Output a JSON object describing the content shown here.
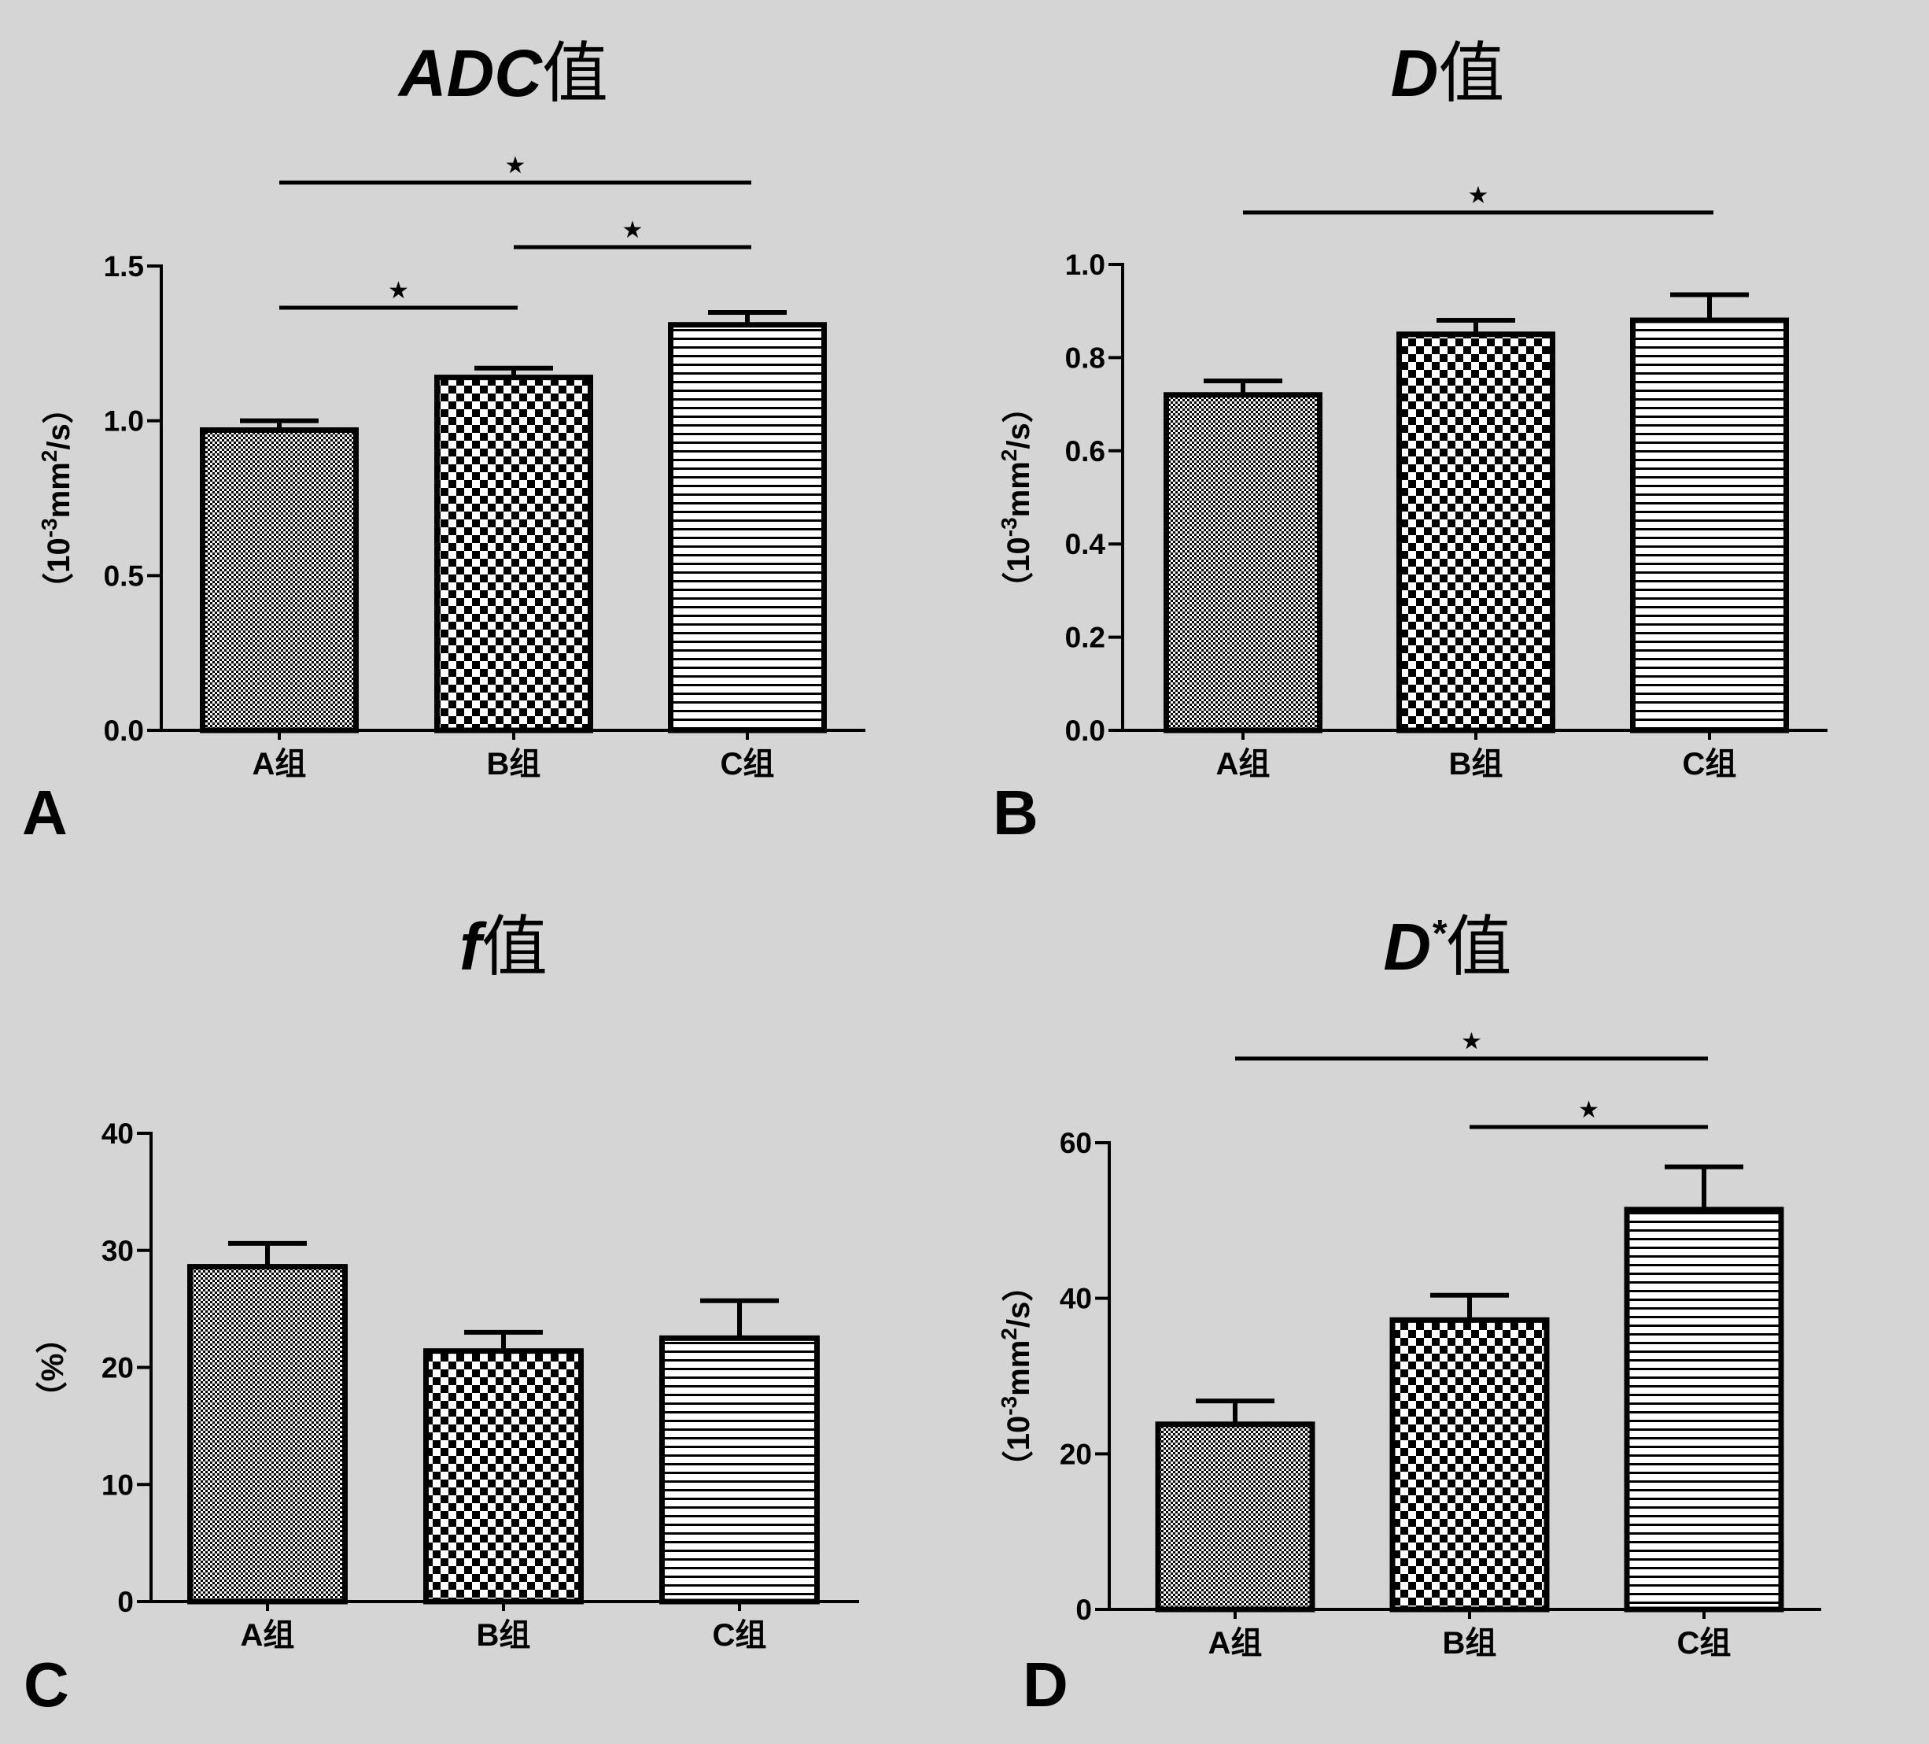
{
  "colors": {
    "background": "#d5d5d5",
    "ink": "#000000",
    "bar_fill": "#ffffff"
  },
  "patterns": [
    "fine-dots-pattern",
    "checker-pattern",
    "horizontal-lines-pattern"
  ],
  "chart_data": [
    {
      "type": "bar",
      "panel_label": "A",
      "title_italic": "ADC",
      "title_suffix": "值",
      "ylabel_prefix": "（10",
      "ylabel_exp": "-3",
      "ylabel_mid": "mm",
      "ylabel_exp2": "2",
      "ylabel_suffix": "/s）",
      "categories": [
        "A组",
        "B组",
        "C组"
      ],
      "values": [
        0.97,
        1.14,
        1.31
      ],
      "errors": [
        0.03,
        0.03,
        0.04
      ],
      "ylim": [
        0,
        1.5
      ],
      "yticks": [
        0,
        0.5,
        1.0,
        1.5
      ],
      "ytick_labels": [
        "0.0",
        "0.5",
        "1.0",
        "1.5"
      ],
      "significance": [
        {
          "from": 0,
          "to": 2,
          "symbol": "★"
        },
        {
          "from": 1,
          "to": 2,
          "symbol": "★"
        },
        {
          "from": 0,
          "to": 1,
          "symbol": "★"
        }
      ]
    },
    {
      "type": "bar",
      "panel_label": "B",
      "title_italic": "D",
      "title_suffix": "值",
      "ylabel_prefix": "（10",
      "ylabel_exp": "-3",
      "ylabel_mid": "mm",
      "ylabel_exp2": "2",
      "ylabel_suffix": "/s）",
      "categories": [
        "A组",
        "B组",
        "C组"
      ],
      "values": [
        0.72,
        0.85,
        0.88
      ],
      "errors": [
        0.03,
        0.03,
        0.055
      ],
      "ylim": [
        0,
        1.0
      ],
      "yticks": [
        0,
        0.2,
        0.4,
        0.6,
        0.8,
        1.0
      ],
      "ytick_labels": [
        "0.0",
        "0.2",
        "0.4",
        "0.6",
        "0.8",
        "1.0"
      ],
      "significance": [
        {
          "from": 0,
          "to": 2,
          "symbol": "★"
        }
      ]
    },
    {
      "type": "bar",
      "panel_label": "C",
      "title_italic": "f",
      "title_suffix": "值",
      "ylabel_text": "（%）",
      "categories": [
        "A组",
        "B组",
        "C组"
      ],
      "values": [
        28.6,
        21.4,
        22.5
      ],
      "errors": [
        2.0,
        1.6,
        3.2
      ],
      "ylim": [
        0,
        40
      ],
      "yticks": [
        0,
        10,
        20,
        30,
        40
      ],
      "ytick_labels": [
        "0",
        "10",
        "20",
        "30",
        "40"
      ],
      "significance": []
    },
    {
      "type": "bar",
      "panel_label": "D",
      "title_italic": "D",
      "title_sup": "*",
      "title_suffix": "值",
      "ylabel_prefix": "（10",
      "ylabel_exp": "-3",
      "ylabel_mid": "mm",
      "ylabel_exp2": "2",
      "ylabel_suffix": "/s）",
      "categories": [
        "A组",
        "B组",
        "C组"
      ],
      "values": [
        23.8,
        37.2,
        51.4
      ],
      "errors": [
        3.0,
        3.2,
        5.5
      ],
      "ylim": [
        0,
        60
      ],
      "yticks": [
        0,
        20,
        40,
        60
      ],
      "ytick_labels": [
        "0",
        "20",
        "40",
        "60"
      ],
      "significance": [
        {
          "from": 0,
          "to": 2,
          "symbol": "★"
        },
        {
          "from": 1,
          "to": 2,
          "symbol": "★"
        }
      ]
    }
  ]
}
